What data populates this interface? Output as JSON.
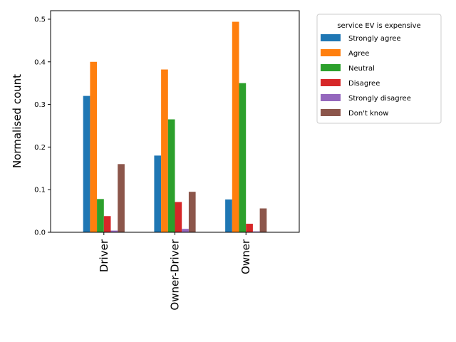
{
  "chart_data": {
    "type": "bar",
    "categories": [
      "Driver",
      "Owner-Driver",
      "Owner"
    ],
    "series": [
      {
        "name": "Strongly agree",
        "values": [
          0.32,
          0.18,
          0.077
        ],
        "color": "#1f77b4"
      },
      {
        "name": "Agree",
        "values": [
          0.4,
          0.382,
          0.494
        ],
        "color": "#ff7f0e"
      },
      {
        "name": "Neutral",
        "values": [
          0.078,
          0.265,
          0.35
        ],
        "color": "#2ca02c"
      },
      {
        "name": "Disagree",
        "values": [
          0.038,
          0.071,
          0.02
        ],
        "color": "#d62728"
      },
      {
        "name": "Strongly disagree",
        "values": [
          0.004,
          0.008,
          0.002
        ],
        "color": "#9467bd"
      },
      {
        "name": "Don't know",
        "values": [
          0.16,
          0.095,
          0.056
        ],
        "color": "#8c564b"
      }
    ],
    "ylabel": "Normalised count",
    "xlabel": "",
    "ylim": [
      0,
      0.52
    ],
    "yticks": [
      "0.0",
      "0.1",
      "0.2",
      "0.3",
      "0.4",
      "0.5"
    ],
    "legend_title": "service EV is expensive",
    "legend_position": "outside-top-right",
    "grid": false
  }
}
